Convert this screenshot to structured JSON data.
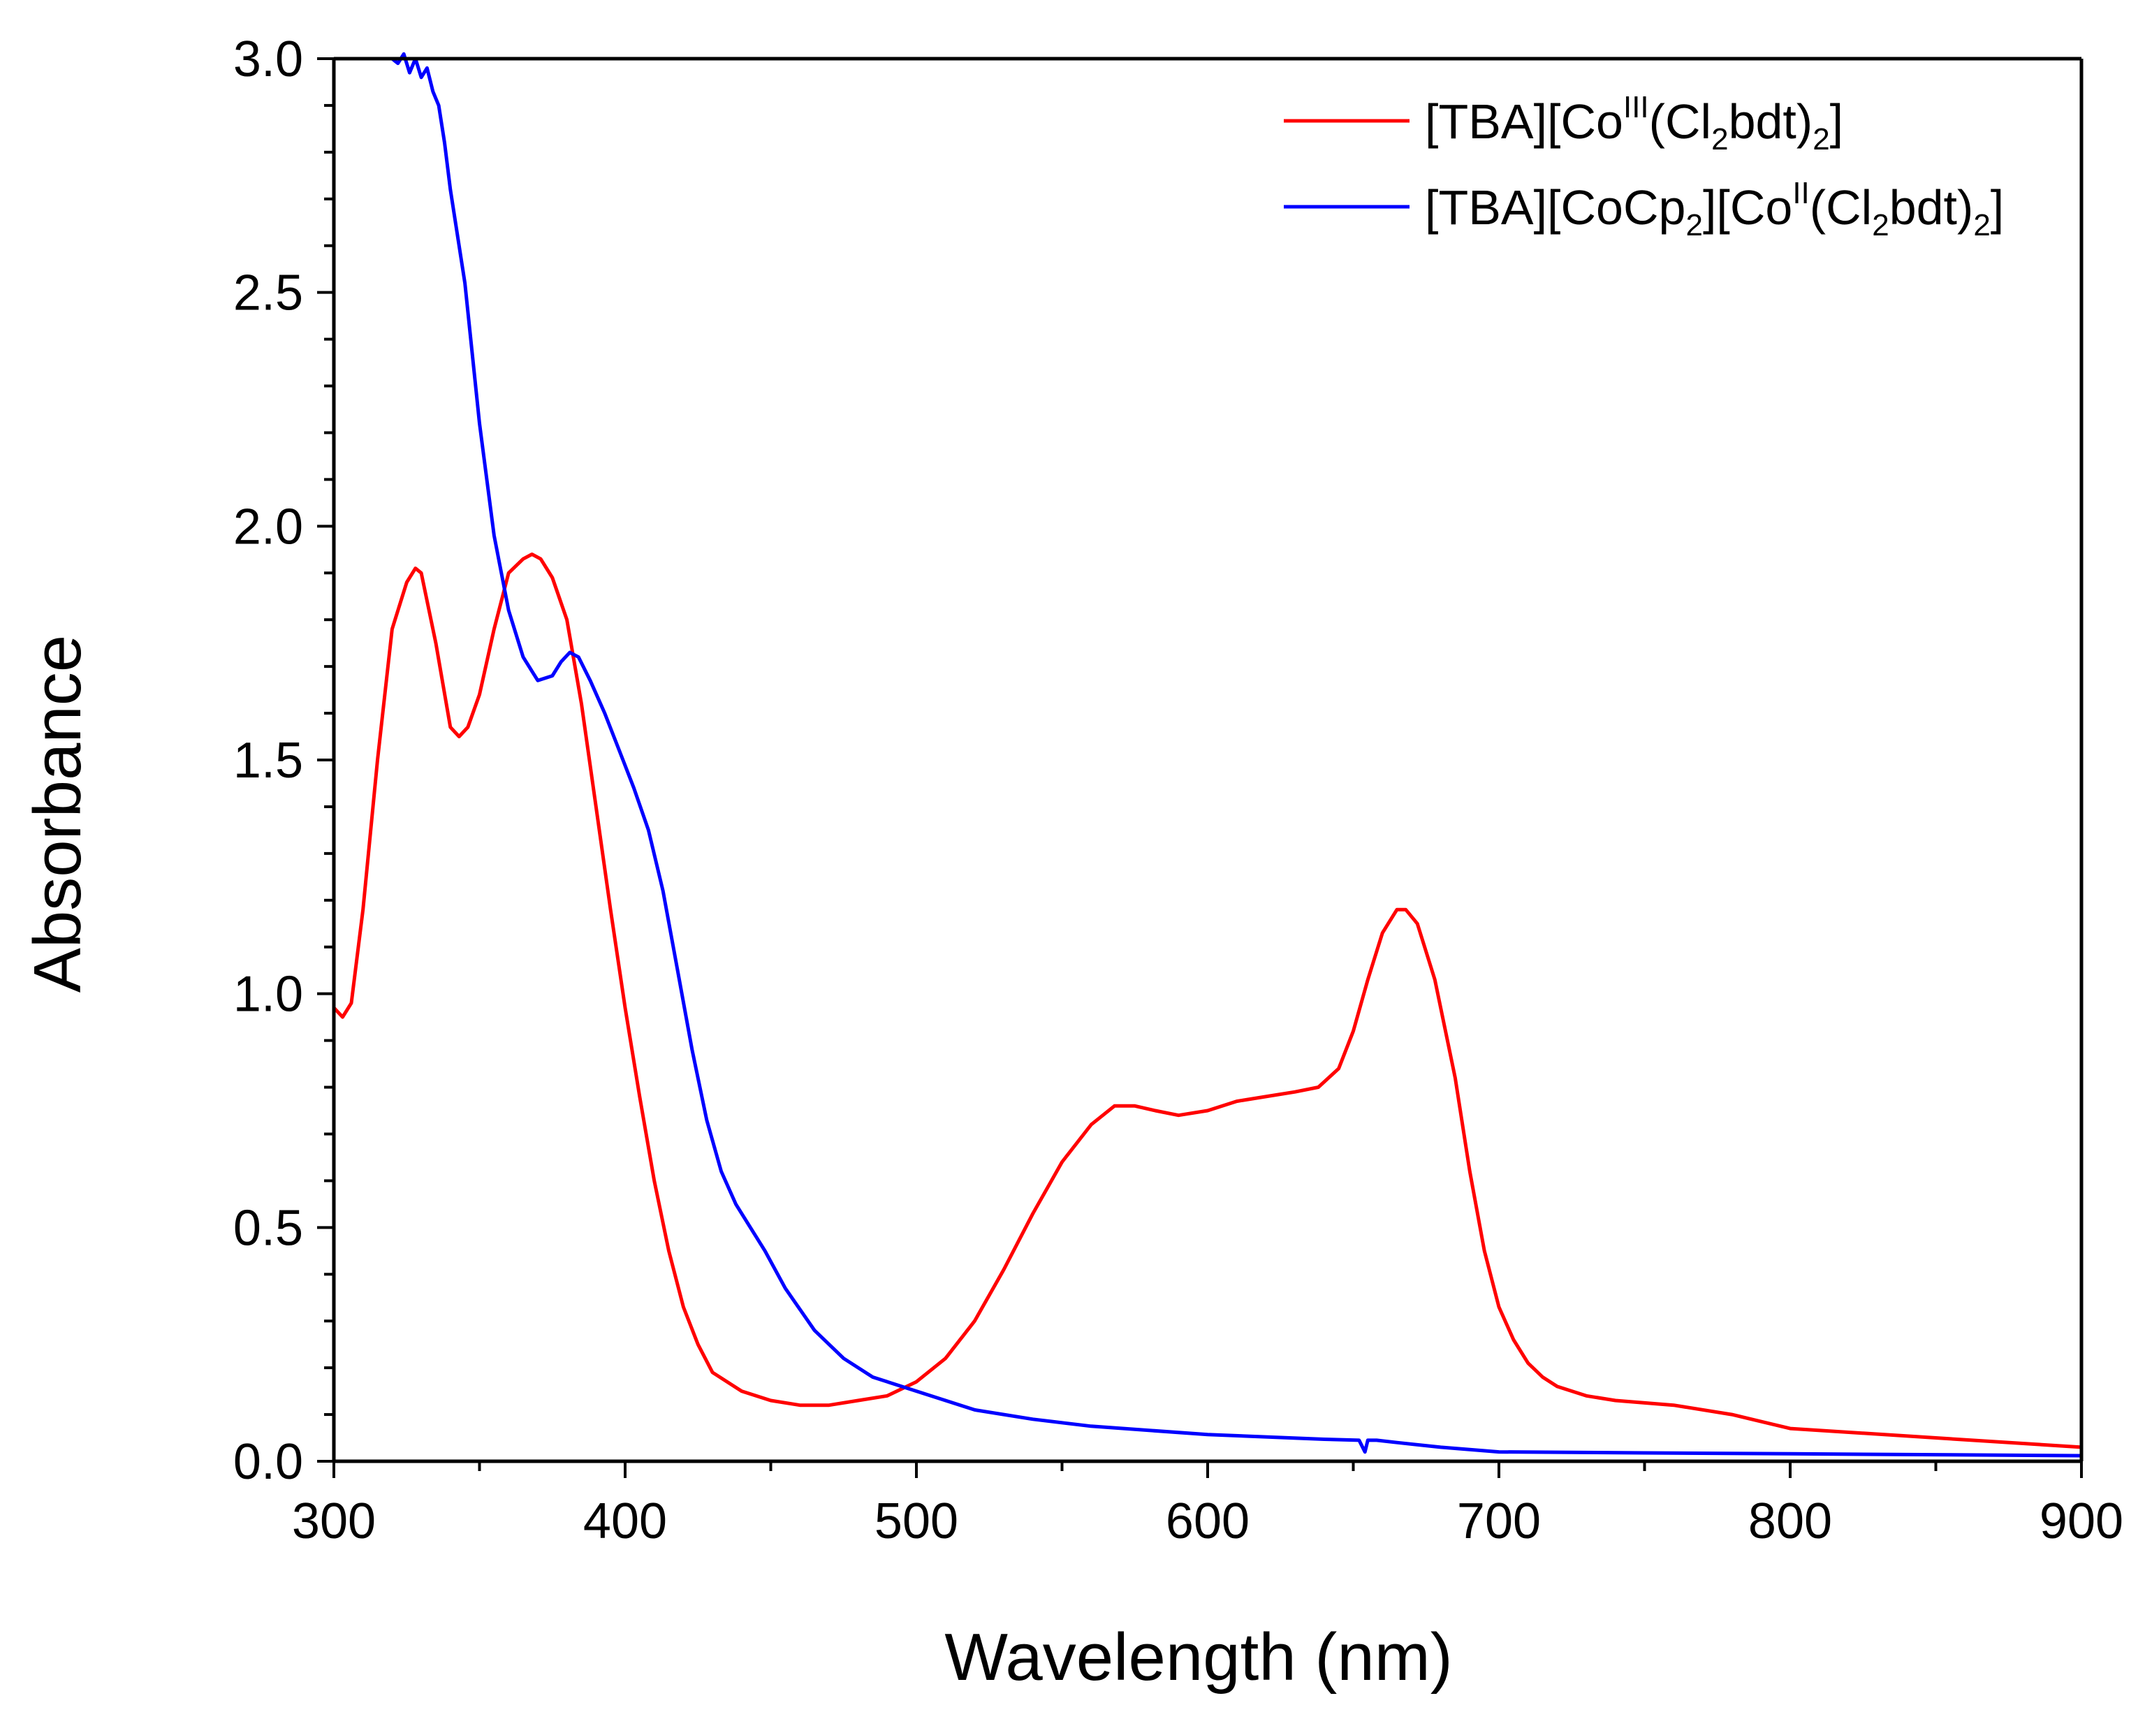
{
  "chart_data": {
    "type": "line",
    "title": "",
    "xlabel": "Wavelength (nm)",
    "ylabel": "Absorbance",
    "xlim": [
      300,
      900
    ],
    "ylim": [
      0.0,
      3.0
    ],
    "x_ticks": [
      300,
      400,
      500,
      600,
      700,
      800,
      900
    ],
    "x_tick_labels": [
      "300",
      "400",
      "500",
      "600",
      "700",
      "800",
      "900"
    ],
    "y_ticks": [
      0.0,
      0.5,
      1.0,
      1.5,
      2.0,
      2.5,
      3.0
    ],
    "y_tick_labels": [
      "0.0",
      "0.5",
      "1.0",
      "1.5",
      "2.0",
      "2.5",
      "3.0"
    ],
    "grid": false,
    "legend_position": "top-right",
    "series": [
      {
        "name": "[TBA][CoIII(Cl2bdt)2]",
        "legend": {
          "t1": "[TBA][Co",
          "sup1": "III",
          "t2": "(Cl",
          "sub1": "2",
          "t3": "bdt)",
          "sub2": "2",
          "t4": "]"
        },
        "color": "#ff0000",
        "x": [
          300,
          303,
          306,
          310,
          315,
          320,
          325,
          328,
          330,
          335,
          340,
          343,
          346,
          350,
          355,
          360,
          365,
          368,
          371,
          375,
          380,
          385,
          390,
          395,
          400,
          405,
          410,
          415,
          420,
          425,
          430,
          440,
          450,
          460,
          470,
          480,
          490,
          500,
          510,
          520,
          530,
          540,
          550,
          560,
          568,
          575,
          582,
          590,
          600,
          610,
          620,
          630,
          638,
          645,
          650,
          655,
          660,
          665,
          668,
          672,
          678,
          685,
          690,
          695,
          700,
          705,
          710,
          715,
          720,
          730,
          740,
          760,
          780,
          800,
          850,
          900
        ],
        "y": [
          0.97,
          0.95,
          0.98,
          1.18,
          1.5,
          1.78,
          1.88,
          1.91,
          1.9,
          1.75,
          1.57,
          1.55,
          1.57,
          1.64,
          1.78,
          1.9,
          1.93,
          1.94,
          1.93,
          1.89,
          1.8,
          1.62,
          1.4,
          1.18,
          0.97,
          0.78,
          0.6,
          0.45,
          0.33,
          0.25,
          0.19,
          0.15,
          0.13,
          0.12,
          0.12,
          0.13,
          0.14,
          0.17,
          0.22,
          0.3,
          0.41,
          0.53,
          0.64,
          0.72,
          0.76,
          0.76,
          0.75,
          0.74,
          0.75,
          0.77,
          0.78,
          0.79,
          0.8,
          0.84,
          0.92,
          1.03,
          1.13,
          1.18,
          1.18,
          1.15,
          1.03,
          0.82,
          0.62,
          0.45,
          0.33,
          0.26,
          0.21,
          0.18,
          0.16,
          0.14,
          0.13,
          0.12,
          0.1,
          0.07,
          0.05,
          0.03
        ]
      },
      {
        "name": "[TBA][CoCp2][CoII(Cl2bdt)2]",
        "legend": {
          "t1": "[TBA][CoCp",
          "sub1": "2",
          "t2": "][Co",
          "sup1": "II",
          "t3": "(Cl",
          "sub2": "2",
          "t4": "bdt)",
          "sub3": "2",
          "t5": "]"
        },
        "color": "#0000ff",
        "x": [
          320,
          322,
          324,
          326,
          328,
          330,
          332,
          334,
          336,
          338,
          340,
          345,
          350,
          355,
          360,
          365,
          370,
          375,
          378,
          381,
          384,
          388,
          393,
          398,
          403,
          408,
          413,
          418,
          423,
          428,
          433,
          438,
          443,
          448,
          455,
          465,
          475,
          485,
          500,
          520,
          540,
          560,
          600,
          640,
          652,
          654,
          655,
          656,
          658,
          665,
          680,
          700,
          750,
          800,
          850,
          900
        ],
        "y": [
          3.0,
          2.99,
          3.01,
          2.97,
          3.0,
          2.96,
          2.98,
          2.93,
          2.9,
          2.82,
          2.72,
          2.52,
          2.22,
          1.98,
          1.82,
          1.72,
          1.67,
          1.68,
          1.71,
          1.73,
          1.72,
          1.67,
          1.6,
          1.52,
          1.44,
          1.35,
          1.22,
          1.05,
          0.88,
          0.73,
          0.62,
          0.55,
          0.5,
          0.45,
          0.37,
          0.28,
          0.22,
          0.18,
          0.15,
          0.11,
          0.09,
          0.075,
          0.057,
          0.047,
          0.045,
          0.02,
          0.045,
          0.045,
          0.045,
          0.04,
          0.03,
          0.02,
          0.018,
          0.016,
          0.014,
          0.012
        ]
      }
    ]
  }
}
